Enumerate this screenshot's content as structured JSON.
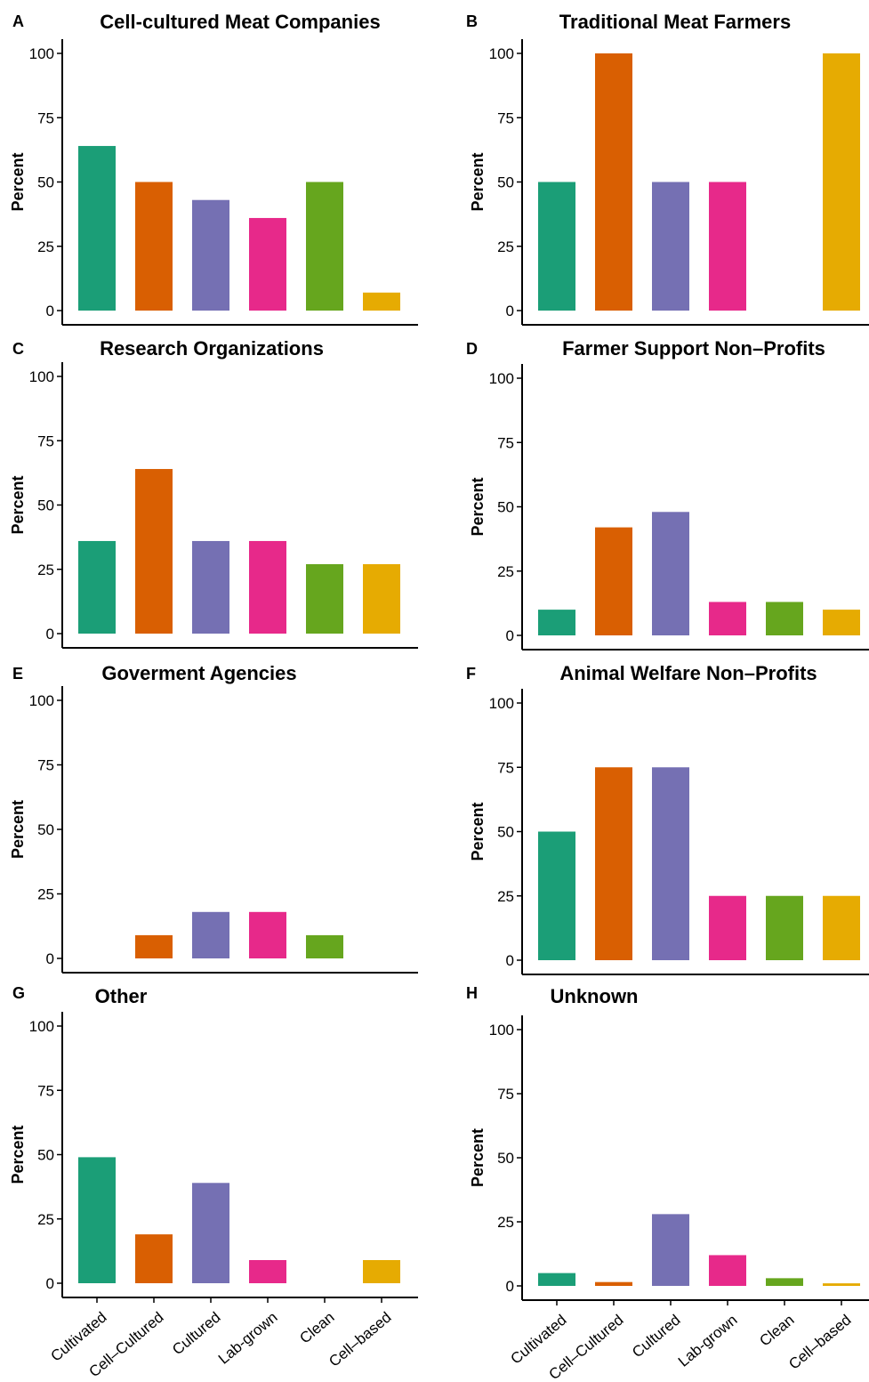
{
  "chart_data": [
    {
      "letter": "A",
      "title": "Cell-cultured Meat Companies",
      "type": "bar",
      "ylabel": "Percent",
      "ylim": [
        0,
        100
      ],
      "yticks": [
        "0",
        "25",
        "50",
        "75",
        "100"
      ],
      "categories": [
        "Cultivated",
        "Cell–Cultured",
        "Cultured",
        "Lab-grown",
        "Clean",
        "Cell–based"
      ],
      "values": [
        64,
        50,
        43,
        36,
        50,
        7
      ],
      "grid": false
    },
    {
      "letter": "B",
      "title": "Traditional Meat Farmers",
      "type": "bar",
      "ylabel": "Percent",
      "ylim": [
        0,
        100
      ],
      "yticks": [
        "0",
        "25",
        "50",
        "75",
        "100"
      ],
      "categories": [
        "Cultivated",
        "Cell–Cultured",
        "Cultured",
        "Lab-grown",
        "Clean",
        "Cell–based"
      ],
      "values": [
        50,
        100,
        50,
        50,
        0,
        100
      ],
      "grid": false
    },
    {
      "letter": "C",
      "title": "Research Organizations",
      "type": "bar",
      "ylabel": "Percent",
      "ylim": [
        0,
        100
      ],
      "yticks": [
        "0",
        "25",
        "50",
        "75",
        "100"
      ],
      "categories": [
        "Cultivated",
        "Cell–Cultured",
        "Cultured",
        "Lab-grown",
        "Clean",
        "Cell–based"
      ],
      "values": [
        36,
        64,
        36,
        36,
        27,
        27
      ],
      "grid": false
    },
    {
      "letter": "D",
      "title": "Farmer Support Non–Profits",
      "type": "bar",
      "ylabel": "Percent",
      "ylim": [
        0,
        100
      ],
      "yticks": [
        "0",
        "25",
        "50",
        "75",
        "100"
      ],
      "categories": [
        "Cultivated",
        "Cell–Cultured",
        "Cultured",
        "Lab-grown",
        "Clean",
        "Cell–based"
      ],
      "values": [
        10,
        42,
        48,
        13,
        13,
        10
      ],
      "grid": false
    },
    {
      "letter": "E",
      "title": "Goverment Agencies",
      "type": "bar",
      "ylabel": "Percent",
      "ylim": [
        0,
        100
      ],
      "yticks": [
        "0",
        "25",
        "50",
        "75",
        "100"
      ],
      "categories": [
        "Cultivated",
        "Cell–Cultured",
        "Cultured",
        "Lab-grown",
        "Clean",
        "Cell–based"
      ],
      "values": [
        0,
        9,
        18,
        18,
        9,
        0
      ],
      "grid": false
    },
    {
      "letter": "F",
      "title": "Animal Welfare Non–Profits",
      "type": "bar",
      "ylabel": "Percent",
      "ylim": [
        0,
        100
      ],
      "yticks": [
        "0",
        "25",
        "50",
        "75",
        "100"
      ],
      "categories": [
        "Cultivated",
        "Cell–Cultured",
        "Cultured",
        "Lab-grown",
        "Clean",
        "Cell–based"
      ],
      "values": [
        50,
        75,
        75,
        25,
        25,
        25
      ],
      "grid": false
    },
    {
      "letter": "G",
      "title": "Other",
      "type": "bar",
      "ylabel": "Percent",
      "ylim": [
        0,
        100
      ],
      "yticks": [
        "0",
        "25",
        "50",
        "75",
        "100"
      ],
      "categories": [
        "Cultivated",
        "Cell–Cultured",
        "Cultured",
        "Lab-grown",
        "Clean",
        "Cell–based"
      ],
      "values": [
        49,
        19,
        39,
        9,
        0,
        9
      ],
      "grid": false
    },
    {
      "letter": "H",
      "title": "Unknown",
      "type": "bar",
      "ylabel": "Percent",
      "ylim": [
        0,
        100
      ],
      "yticks": [
        "0",
        "25",
        "50",
        "75",
        "100"
      ],
      "categories": [
        "Cultivated",
        "Cell–Cultured",
        "Cultured",
        "Lab-grown",
        "Clean",
        "Cell–based"
      ],
      "values": [
        5,
        1.5,
        28,
        12,
        3,
        1
      ],
      "grid": false
    }
  ],
  "colors": [
    "#1b9e77",
    "#d95f02",
    "#7570b3",
    "#e7298a",
    "#66a61e",
    "#e6ab02"
  ]
}
